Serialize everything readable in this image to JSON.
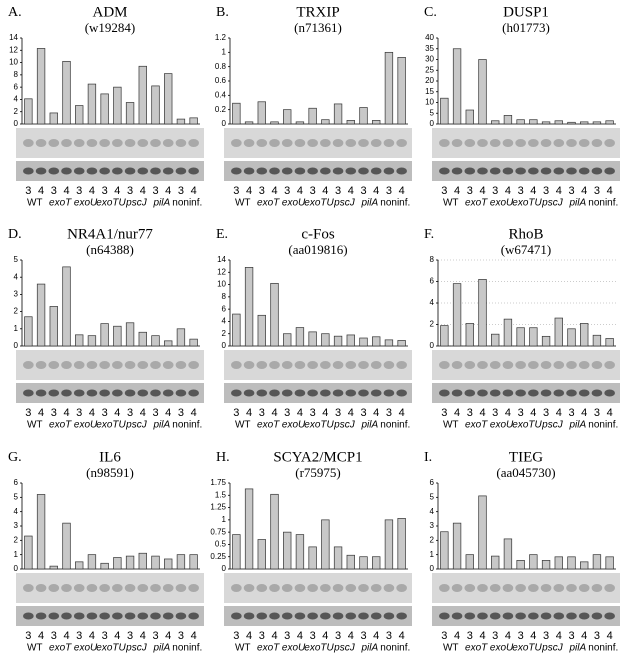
{
  "chart_data": [
    {
      "type": "bar",
      "label": "A.",
      "title": "ADM",
      "subtitle": "(w19284)",
      "categories": [
        "3",
        "4",
        "3",
        "4",
        "3",
        "4",
        "3",
        "4",
        "3",
        "4",
        "3",
        "4",
        "3",
        "4"
      ],
      "groups": [
        "WT",
        "exoT",
        "exoU",
        "exoTU",
        "pscJ",
        "pilA",
        "noninf."
      ],
      "values": [
        4.1,
        12.3,
        1.8,
        10.2,
        3.0,
        6.5,
        4.9,
        6.0,
        3.5,
        9.4,
        6.2,
        8.2,
        0.8,
        1.0
      ],
      "color": "#c8c8c8",
      "ylim": [
        0,
        14
      ],
      "yticks": [
        0,
        2,
        4,
        6,
        8,
        10,
        12,
        14
      ],
      "grid": false
    },
    {
      "type": "bar",
      "label": "B.",
      "title": "TRXIP",
      "subtitle": "(n71361)",
      "categories": [
        "3",
        "4",
        "3",
        "4",
        "3",
        "4",
        "3",
        "4",
        "3",
        "4",
        "3",
        "4",
        "3",
        "4"
      ],
      "groups": [
        "WT",
        "exoT",
        "exoU",
        "exoTU",
        "pscJ",
        "pilA",
        "noninf."
      ],
      "values": [
        0.29,
        0.03,
        0.31,
        0.03,
        0.2,
        0.03,
        0.22,
        0.06,
        0.28,
        0.05,
        0.23,
        0.05,
        1.0,
        0.93
      ],
      "color": "#c8c8c8",
      "ylim": [
        0,
        1.2
      ],
      "yticks": [
        0,
        0.2,
        0.4,
        0.6,
        0.8,
        1,
        1.2
      ],
      "grid": false
    },
    {
      "type": "bar",
      "label": "C.",
      "title": "DUSP1",
      "subtitle": "(h01773)",
      "categories": [
        "3",
        "4",
        "3",
        "4",
        "3",
        "4",
        "3",
        "4",
        "3",
        "4",
        "3",
        "4",
        "3",
        "4"
      ],
      "groups": [
        "WT",
        "exoT",
        "exoU",
        "exoTU",
        "pscJ",
        "pilA",
        "noninf."
      ],
      "values": [
        12,
        35,
        6.5,
        30,
        1.5,
        4,
        2,
        2,
        1,
        1.5,
        0.8,
        1,
        1,
        1.5
      ],
      "color": "#c8c8c8",
      "ylim": [
        0,
        40
      ],
      "yticks": [
        0,
        5,
        10,
        15,
        20,
        25,
        30,
        35,
        40
      ],
      "grid": false
    },
    {
      "type": "bar",
      "label": "D.",
      "title": "NR4A1/nur77",
      "subtitle": "(n64388)",
      "categories": [
        "3",
        "4",
        "3",
        "4",
        "3",
        "4",
        "3",
        "4",
        "3",
        "4",
        "3",
        "4",
        "3",
        "4"
      ],
      "groups": [
        "WT",
        "exoT",
        "exoU",
        "exoTU",
        "pscJ",
        "pilA",
        "noninf."
      ],
      "values": [
        1.7,
        3.6,
        2.3,
        4.6,
        0.65,
        0.6,
        1.3,
        1.15,
        1.35,
        0.8,
        0.6,
        0.3,
        1.0,
        0.4
      ],
      "color": "#c8c8c8",
      "ylim": [
        0,
        5
      ],
      "yticks": [
        0,
        1,
        2,
        3,
        4,
        5
      ],
      "grid": false
    },
    {
      "type": "bar",
      "label": "E.",
      "title": "c-Fos",
      "subtitle": "(aa019816)",
      "categories": [
        "3",
        "4",
        "3",
        "4",
        "3",
        "4",
        "3",
        "4",
        "3",
        "4",
        "3",
        "4",
        "3",
        "4"
      ],
      "groups": [
        "WT",
        "exoT",
        "exoU",
        "exoTU",
        "pscJ",
        "pilA",
        "noninf."
      ],
      "values": [
        5.2,
        12.8,
        5.0,
        10.2,
        2.0,
        3.0,
        2.3,
        2.0,
        1.6,
        1.8,
        1.3,
        1.5,
        1.0,
        0.9
      ],
      "color": "#c8c8c8",
      "ylim": [
        0,
        14
      ],
      "yticks": [
        0,
        2,
        4,
        6,
        8,
        10,
        12,
        14
      ],
      "grid": false
    },
    {
      "type": "bar",
      "label": "F.",
      "title": "RhoB",
      "subtitle": "(w67471)",
      "categories": [
        "3",
        "4",
        "3",
        "4",
        "3",
        "4",
        "3",
        "4",
        "3",
        "4",
        "3",
        "4",
        "3",
        "4"
      ],
      "groups": [
        "WT",
        "exoT",
        "exoU",
        "exoTU",
        "pscJ",
        "pilA",
        "noninf."
      ],
      "values": [
        1.9,
        5.8,
        2.1,
        6.2,
        1.1,
        2.5,
        1.7,
        1.7,
        0.9,
        2.6,
        1.6,
        2.1,
        1.0,
        0.7
      ],
      "color": "#c8c8c8",
      "ylim": [
        0,
        8
      ],
      "yticks": [
        0,
        2,
        4,
        6,
        8
      ],
      "grid": true
    },
    {
      "type": "bar",
      "label": "G.",
      "title": "IL6",
      "subtitle": "(n98591)",
      "categories": [
        "3",
        "4",
        "3",
        "4",
        "3",
        "4",
        "3",
        "4",
        "3",
        "4",
        "3",
        "4",
        "3",
        "4"
      ],
      "groups": [
        "WT",
        "exoT",
        "exoU",
        "exoTU",
        "pscJ",
        "pilA",
        "noninf."
      ],
      "values": [
        2.3,
        5.2,
        0.2,
        3.2,
        0.5,
        1.0,
        0.4,
        0.8,
        0.9,
        1.1,
        0.9,
        0.7,
        1.0,
        1.0
      ],
      "color": "#c8c8c8",
      "ylim": [
        0,
        6
      ],
      "yticks": [
        0,
        1,
        2,
        3,
        4,
        5,
        6
      ],
      "grid": false
    },
    {
      "type": "bar",
      "label": "H.",
      "title": "SCYA2/MCP1",
      "subtitle": "(r75975)",
      "categories": [
        "3",
        "4",
        "3",
        "4",
        "3",
        "4",
        "3",
        "4",
        "3",
        "4",
        "3",
        "4",
        "3",
        "4"
      ],
      "groups": [
        "WT",
        "exoT",
        "exoU",
        "exoTU",
        "pscJ",
        "pilA",
        "noninf."
      ],
      "values": [
        0.7,
        1.63,
        0.6,
        1.52,
        0.75,
        0.7,
        0.45,
        1.0,
        0.45,
        0.28,
        0.25,
        0.25,
        1.0,
        1.03
      ],
      "color": "#c8c8c8",
      "ylim": [
        0,
        1.75
      ],
      "yticks": [
        0,
        0.25,
        0.5,
        0.75,
        1,
        1.25,
        1.5,
        1.75
      ],
      "grid": false
    },
    {
      "type": "bar",
      "label": "I.",
      "title": "TIEG",
      "subtitle": "(aa045730)",
      "categories": [
        "3",
        "4",
        "3",
        "4",
        "3",
        "4",
        "3",
        "4",
        "3",
        "4",
        "3",
        "4",
        "3",
        "4"
      ],
      "groups": [
        "WT",
        "exoT",
        "exoU",
        "exoTU",
        "pscJ",
        "pilA",
        "noninf."
      ],
      "values": [
        2.6,
        3.2,
        1.0,
        5.1,
        0.9,
        2.1,
        0.6,
        1.0,
        0.6,
        0.85,
        0.85,
        0.5,
        1.0,
        0.85
      ],
      "color": "#c8c8c8",
      "ylim": [
        0,
        6
      ],
      "yticks": [
        0,
        1,
        2,
        3,
        4,
        5,
        6
      ],
      "grid": false
    }
  ]
}
